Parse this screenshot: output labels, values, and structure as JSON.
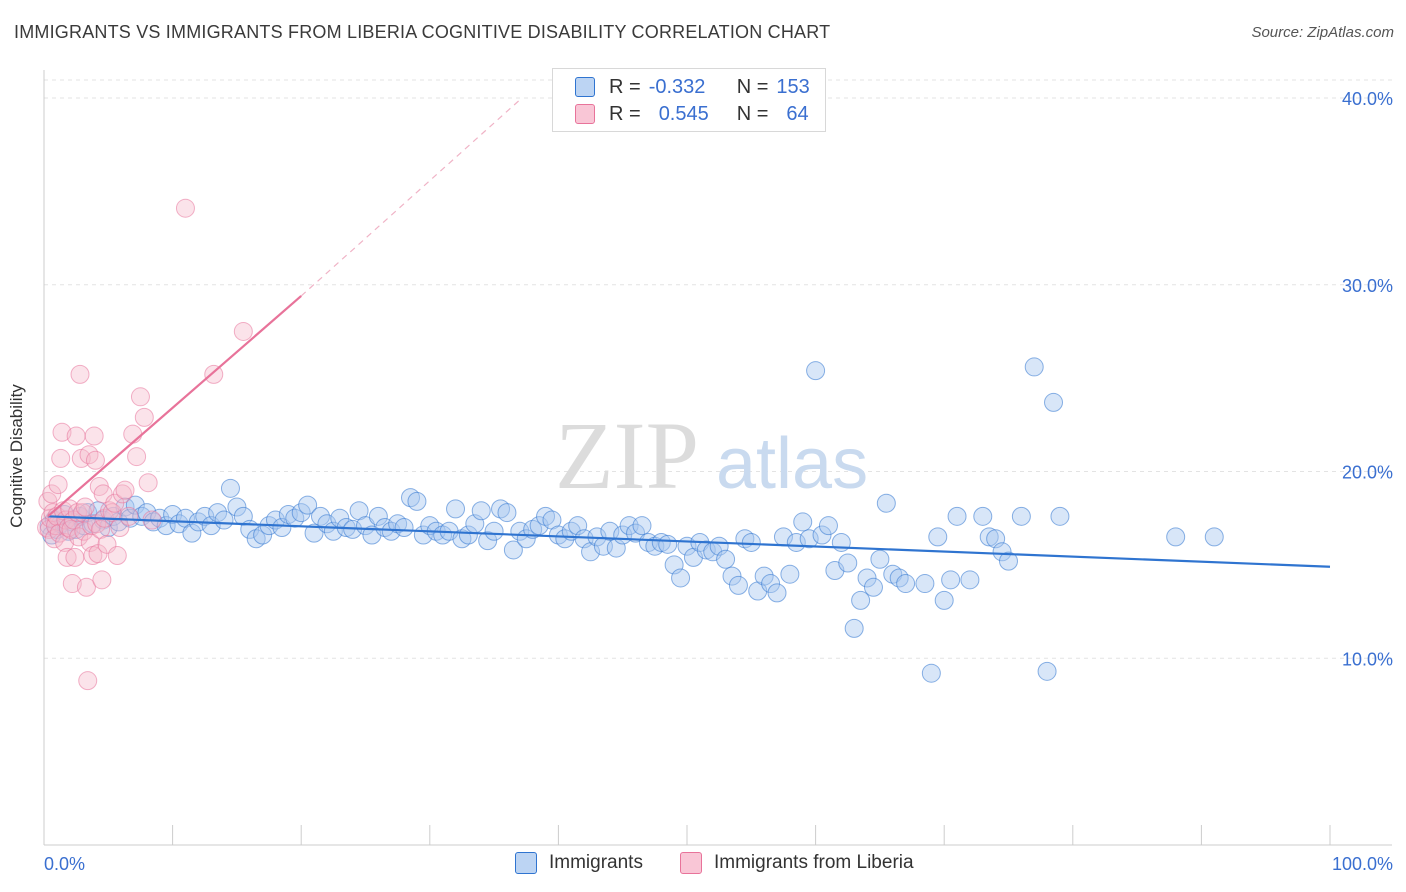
{
  "title": "IMMIGRANTS VS IMMIGRANTS FROM LIBERIA COGNITIVE DISABILITY CORRELATION CHART",
  "source": "Source: ZipAtlas.com",
  "watermark": {
    "zip": "ZIP",
    "atlas": "atlas"
  },
  "legend_top": {
    "rows": [
      {
        "r_label": "R =",
        "r_value": "-0.332",
        "n_label": "N =",
        "n_value": "153"
      },
      {
        "r_label": "R =",
        "r_value": "0.545",
        "n_label": "N =",
        "n_value": "64"
      }
    ]
  },
  "colors": {
    "blue": "#2f74d0",
    "blue_fill": "#a9c8ef",
    "pink": "#e8739a",
    "pink_fill": "#f6b8cb",
    "tick_label": "#3a6fd0",
    "grid": "#e3e3e3"
  },
  "chart_data": {
    "type": "scatter",
    "title": "IMMIGRANTS VS IMMIGRANTS FROM LIBERIA COGNITIVE DISABILITY CORRELATION CHART",
    "xlabel": "",
    "ylabel": "Cognitive Disability",
    "xlim": [
      0,
      100
    ],
    "ylim": [
      0,
      41.5
    ],
    "x_tick_labels": [
      "0.0%",
      "100.0%"
    ],
    "y_ticks": [
      10,
      20,
      30,
      40
    ],
    "y_tick_labels": [
      "10.0%",
      "20.0%",
      "30.0%",
      "40.0%"
    ],
    "grid": true,
    "legend_placement": "bottom",
    "series": [
      {
        "name": "Immigrants",
        "color": "#2f74d0",
        "trend": {
          "x": [
            0.3,
            100
          ],
          "y": [
            17.6,
            14.9
          ]
        },
        "points": [
          [
            0.4,
            17.1
          ],
          [
            0.6,
            16.6
          ],
          [
            0.8,
            17.4
          ],
          [
            1.0,
            16.9
          ],
          [
            1.3,
            17.2
          ],
          [
            1.6,
            17.7
          ],
          [
            1.9,
            16.8
          ],
          [
            2.2,
            17.3
          ],
          [
            2.5,
            16.9
          ],
          [
            2.8,
            17.6
          ],
          [
            3.1,
            17.1
          ],
          [
            3.4,
            17.8
          ],
          [
            3.8,
            17.2
          ],
          [
            4.2,
            17.9
          ],
          [
            4.6,
            17.4
          ],
          [
            5.0,
            17.0
          ],
          [
            5.4,
            17.6
          ],
          [
            5.8,
            17.3
          ],
          [
            6.3,
            18.1
          ],
          [
            6.7,
            17.5
          ],
          [
            7.1,
            18.2
          ],
          [
            7.6,
            17.6
          ],
          [
            8.0,
            17.8
          ],
          [
            8.5,
            17.3
          ],
          [
            9.0,
            17.5
          ],
          [
            9.5,
            17.1
          ],
          [
            10.0,
            17.7
          ],
          [
            10.5,
            17.2
          ],
          [
            11.0,
            17.5
          ],
          [
            11.5,
            16.7
          ],
          [
            12.0,
            17.3
          ],
          [
            12.5,
            17.6
          ],
          [
            13.0,
            17.1
          ],
          [
            13.5,
            17.8
          ],
          [
            14.0,
            17.4
          ],
          [
            14.5,
            19.1
          ],
          [
            15.0,
            18.1
          ],
          [
            15.5,
            17.6
          ],
          [
            16.0,
            16.9
          ],
          [
            16.5,
            16.4
          ],
          [
            17.0,
            16.6
          ],
          [
            17.5,
            17.1
          ],
          [
            18.0,
            17.4
          ],
          [
            18.5,
            17.0
          ],
          [
            19.0,
            17.7
          ],
          [
            19.5,
            17.5
          ],
          [
            20.0,
            17.8
          ],
          [
            20.5,
            18.2
          ],
          [
            21.0,
            16.7
          ],
          [
            21.5,
            17.6
          ],
          [
            22.0,
            17.2
          ],
          [
            22.5,
            16.8
          ],
          [
            23.0,
            17.5
          ],
          [
            23.5,
            17.0
          ],
          [
            24.0,
            16.9
          ],
          [
            24.5,
            17.9
          ],
          [
            25.0,
            17.1
          ],
          [
            25.5,
            16.6
          ],
          [
            26.0,
            17.6
          ],
          [
            26.5,
            17.0
          ],
          [
            27.0,
            16.8
          ],
          [
            27.5,
            17.2
          ],
          [
            28.0,
            17.0
          ],
          [
            28.5,
            18.6
          ],
          [
            29.0,
            18.4
          ],
          [
            29.5,
            16.6
          ],
          [
            30.0,
            17.1
          ],
          [
            30.5,
            16.8
          ],
          [
            31.0,
            16.6
          ],
          [
            31.5,
            16.8
          ],
          [
            32.0,
            18.0
          ],
          [
            32.5,
            16.4
          ],
          [
            33.0,
            16.6
          ],
          [
            33.5,
            17.2
          ],
          [
            34.0,
            17.9
          ],
          [
            34.5,
            16.3
          ],
          [
            35.0,
            16.8
          ],
          [
            35.5,
            18.0
          ],
          [
            36.0,
            17.8
          ],
          [
            36.5,
            15.8
          ],
          [
            37.0,
            16.8
          ],
          [
            37.5,
            16.4
          ],
          [
            38.0,
            16.9
          ],
          [
            38.5,
            17.1
          ],
          [
            39.0,
            17.6
          ],
          [
            39.5,
            17.4
          ],
          [
            40.0,
            16.6
          ],
          [
            40.5,
            16.4
          ],
          [
            41.0,
            16.8
          ],
          [
            41.5,
            17.1
          ],
          [
            42.0,
            16.4
          ],
          [
            42.5,
            15.7
          ],
          [
            43.0,
            16.5
          ],
          [
            43.5,
            16.0
          ],
          [
            44.0,
            16.8
          ],
          [
            44.5,
            15.9
          ],
          [
            45.0,
            16.6
          ],
          [
            45.5,
            17.1
          ],
          [
            46.0,
            16.7
          ],
          [
            46.5,
            17.1
          ],
          [
            47.0,
            16.2
          ],
          [
            47.5,
            16.0
          ],
          [
            48.0,
            16.2
          ],
          [
            48.5,
            16.1
          ],
          [
            49.0,
            15.0
          ],
          [
            49.5,
            14.3
          ],
          [
            50.0,
            16.0
          ],
          [
            50.5,
            15.4
          ],
          [
            51.0,
            16.2
          ],
          [
            51.5,
            15.8
          ],
          [
            52.0,
            15.7
          ],
          [
            52.5,
            16.0
          ],
          [
            53.0,
            15.3
          ],
          [
            53.5,
            14.4
          ],
          [
            54.0,
            13.9
          ],
          [
            54.5,
            16.4
          ],
          [
            55.0,
            16.2
          ],
          [
            55.5,
            13.6
          ],
          [
            56.0,
            14.4
          ],
          [
            56.5,
            14.0
          ],
          [
            57.0,
            13.5
          ],
          [
            57.5,
            16.5
          ],
          [
            58.0,
            14.5
          ],
          [
            58.5,
            16.2
          ],
          [
            59.0,
            17.3
          ],
          [
            59.5,
            16.4
          ],
          [
            60.0,
            25.4
          ],
          [
            60.5,
            16.6
          ],
          [
            61.0,
            17.1
          ],
          [
            61.5,
            14.7
          ],
          [
            62.0,
            16.2
          ],
          [
            62.5,
            15.1
          ],
          [
            63.0,
            11.6
          ],
          [
            63.5,
            13.1
          ],
          [
            64.0,
            14.3
          ],
          [
            64.5,
            13.8
          ],
          [
            65.0,
            15.3
          ],
          [
            65.5,
            18.3
          ],
          [
            66.0,
            14.5
          ],
          [
            66.5,
            14.3
          ],
          [
            67.0,
            14.0
          ],
          [
            68.5,
            14.0
          ],
          [
            69.0,
            9.2
          ],
          [
            69.5,
            16.5
          ],
          [
            70.0,
            13.1
          ],
          [
            70.5,
            14.2
          ],
          [
            71.0,
            17.6
          ],
          [
            72.0,
            14.2
          ],
          [
            73.0,
            17.6
          ],
          [
            73.5,
            16.5
          ],
          [
            74.0,
            16.4
          ],
          [
            74.5,
            15.7
          ],
          [
            75.0,
            15.2
          ],
          [
            76.0,
            17.6
          ],
          [
            77.0,
            25.6
          ],
          [
            78.0,
            9.3
          ],
          [
            78.5,
            23.7
          ],
          [
            79.0,
            17.6
          ],
          [
            88.0,
            16.5
          ],
          [
            91.0,
            16.5
          ]
        ]
      },
      {
        "name": "Immigrants from Liberia",
        "color": "#e8739a",
        "trend": {
          "x": [
            0.3,
            20
          ],
          "y": [
            17.6,
            29.4
          ]
        },
        "trend_ext": {
          "x": [
            20,
            37
          ],
          "y": [
            29.4,
            39.9
          ]
        },
        "points": [
          [
            0.2,
            17.0
          ],
          [
            0.3,
            18.4
          ],
          [
            0.4,
            16.9
          ],
          [
            0.5,
            17.5
          ],
          [
            0.6,
            18.8
          ],
          [
            0.7,
            17.8
          ],
          [
            0.8,
            16.4
          ],
          [
            0.9,
            17.1
          ],
          [
            1.0,
            17.6
          ],
          [
            1.1,
            19.3
          ],
          [
            1.2,
            16.7
          ],
          [
            1.3,
            20.7
          ],
          [
            1.4,
            22.1
          ],
          [
            1.5,
            17.9
          ],
          [
            1.6,
            16.2
          ],
          [
            1.7,
            17.4
          ],
          [
            1.8,
            15.4
          ],
          [
            1.9,
            17.0
          ],
          [
            2.0,
            18.0
          ],
          [
            2.1,
            16.9
          ],
          [
            2.2,
            14.0
          ],
          [
            2.3,
            17.4
          ],
          [
            2.4,
            15.4
          ],
          [
            2.5,
            21.9
          ],
          [
            2.6,
            17.8
          ],
          [
            2.7,
            16.5
          ],
          [
            2.8,
            25.2
          ],
          [
            2.9,
            20.7
          ],
          [
            3.0,
            17.8
          ],
          [
            3.1,
            16.8
          ],
          [
            3.2,
            18.1
          ],
          [
            3.3,
            13.8
          ],
          [
            3.4,
            8.8
          ],
          [
            3.5,
            20.9
          ],
          [
            3.6,
            16.2
          ],
          [
            3.7,
            17.1
          ],
          [
            3.8,
            15.5
          ],
          [
            3.9,
            21.9
          ],
          [
            4.0,
            20.6
          ],
          [
            4.1,
            17.2
          ],
          [
            4.2,
            15.6
          ],
          [
            4.3,
            19.2
          ],
          [
            4.4,
            16.9
          ],
          [
            4.5,
            14.2
          ],
          [
            4.6,
            18.8
          ],
          [
            4.7,
            17.5
          ],
          [
            4.9,
            16.1
          ],
          [
            5.1,
            17.9
          ],
          [
            5.3,
            17.8
          ],
          [
            5.5,
            18.3
          ],
          [
            5.7,
            15.5
          ],
          [
            5.9,
            17.0
          ],
          [
            6.1,
            18.8
          ],
          [
            6.3,
            19.0
          ],
          [
            6.6,
            17.6
          ],
          [
            6.9,
            22.0
          ],
          [
            7.2,
            20.8
          ],
          [
            7.5,
            24.0
          ],
          [
            7.8,
            22.9
          ],
          [
            8.1,
            19.4
          ],
          [
            8.4,
            17.4
          ],
          [
            11.0,
            34.1
          ],
          [
            13.2,
            25.2
          ],
          [
            15.5,
            27.5
          ]
        ]
      }
    ]
  },
  "bottom_legend": [
    {
      "label": "Immigrants"
    },
    {
      "label": "Immigrants from Liberia"
    }
  ]
}
